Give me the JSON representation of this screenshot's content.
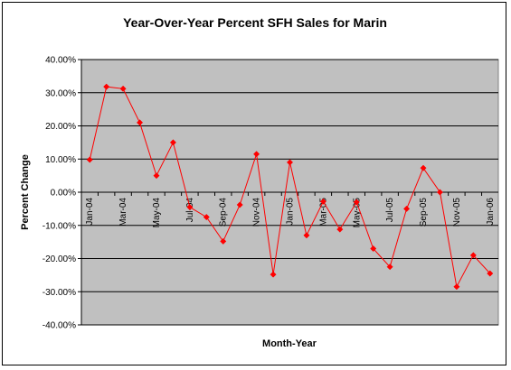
{
  "chart_data": {
    "type": "line",
    "title": "Year-Over-Year Percent SFH Sales for Marin",
    "xlabel": "Month-Year",
    "ylabel": "Percent Change",
    "ylim": [
      -40,
      40
    ],
    "y_tick_step": 10,
    "y_tick_labels": [
      "40.00%",
      "30.00%",
      "20.00%",
      "10.00%",
      "0.00%",
      "-10.00%",
      "-20.00%",
      "-30.00%",
      "-40.00%"
    ],
    "categories": [
      "Jan-04",
      "Feb-04",
      "Mar-04",
      "Apr-04",
      "May-04",
      "Jun-04",
      "Jul-04",
      "Aug-04",
      "Sep-04",
      "Oct-04",
      "Nov-04",
      "Dec-04",
      "Jan-05",
      "Feb-05",
      "Mar-05",
      "Apr-05",
      "May-05",
      "Jun-05",
      "Jul-05",
      "Aug-05",
      "Sep-05",
      "Oct-05",
      "Nov-05",
      "Dec-05",
      "Jan-06"
    ],
    "x_tick_labels": [
      "Jan-04",
      "",
      "Mar-04",
      "",
      "May-04",
      "",
      "Jul-04",
      "",
      "Sep-04",
      "",
      "Nov-04",
      "",
      "Jan-05",
      "",
      "Mar-05",
      "",
      "May-05",
      "",
      "Jul-05",
      "",
      "Sep-05",
      "",
      "Nov-05",
      "",
      "Jan-06"
    ],
    "series": [
      {
        "values": [
          9.8,
          31.8,
          31.2,
          21.0,
          5.0,
          15.0,
          -4.5,
          -7.5,
          -14.8,
          -3.8,
          11.5,
          -24.8,
          9.0,
          -13.0,
          -2.8,
          -11.2,
          -3.0,
          -17.0,
          -22.5,
          -5.0,
          7.3,
          0.0,
          -28.5,
          -19.0,
          -24.5
        ],
        "color": "#ff0000",
        "marker": "diamond"
      }
    ],
    "plot_background": "#c0c0c0",
    "grid": true,
    "gridline_color": "#000000",
    "legend": "none"
  }
}
